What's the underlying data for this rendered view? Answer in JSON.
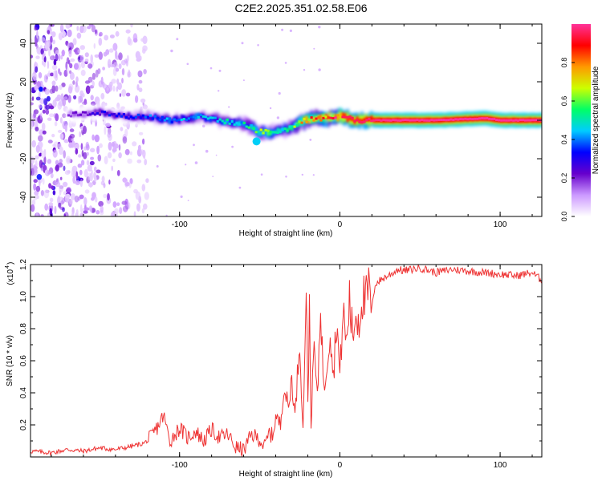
{
  "page": {
    "title": "C2E2.2025.351.02.58.E06"
  },
  "chart_data": [
    {
      "type": "heatmap",
      "title": "C2E2.2025.351.02.58.E06",
      "xlabel": "Height of straight line (km)",
      "ylabel": "Frequency (Hz)",
      "xlim": [
        -193,
        126
      ],
      "ylim": [
        -50,
        50
      ],
      "xticks": [
        {
          "value": -100,
          "label": "-100"
        },
        {
          "value": 0,
          "label": "0"
        },
        {
          "value": 100,
          "label": "100"
        }
      ],
      "yticks": [
        {
          "value": -40,
          "label": "-40"
        },
        {
          "value": -20,
          "label": "-20"
        },
        {
          "value": 0,
          "label": "0"
        },
        {
          "value": 20,
          "label": "20"
        },
        {
          "value": 40,
          "label": "40"
        }
      ],
      "ridge": {
        "x": [
          -170,
          -150,
          -135,
          -120,
          -105,
          -90,
          -80,
          -70,
          -62,
          -56,
          -52,
          -46,
          -40,
          -32,
          -25,
          -18,
          -10,
          0,
          10,
          30,
          60,
          90,
          100,
          126
        ],
        "frequency": [
          3,
          4,
          2,
          2,
          0,
          2,
          1,
          -1,
          -2,
          -3,
          -6,
          -6,
          -6,
          -4,
          -1,
          1,
          1,
          2,
          0,
          0,
          0,
          1,
          0,
          0
        ],
        "amplitude": [
          0.2,
          0.3,
          0.35,
          0.4,
          0.45,
          0.45,
          0.45,
          0.5,
          0.5,
          0.55,
          0.6,
          0.65,
          0.55,
          0.6,
          0.75,
          0.85,
          0.9,
          0.95,
          0.95,
          1.0,
          1.0,
          1.0,
          1.0,
          1.0
        ]
      },
      "noise_region": {
        "x": [
          -193,
          -120
        ],
        "frequency": [
          -50,
          50
        ],
        "amplitude": [
          0.05,
          0.3
        ]
      },
      "colorbar": {
        "label": "Normalized spectral amplitude",
        "range": [
          0,
          1
        ],
        "ticks": [
          {
            "value": 0.0,
            "label": "0.0"
          },
          {
            "value": 0.2,
            "label": "0.2"
          },
          {
            "value": 0.4,
            "label": "0.4"
          },
          {
            "value": 0.6,
            "label": "0.6"
          },
          {
            "value": 0.8,
            "label": "0.8"
          }
        ],
        "colors": [
          "#ffffff",
          "#cc99ff",
          "#6600cc",
          "#0000ff",
          "#00ccff",
          "#00ff66",
          "#ccff00",
          "#ff9900",
          "#ff0000",
          "#ff3399"
        ]
      }
    },
    {
      "type": "line",
      "xlabel": "Height of straight line (km)",
      "ylabel": "SNR (10 * v/v)",
      "multiplier_label": "(x10",
      "multiplier_exponent": "4",
      "xlim": [
        -193,
        126
      ],
      "ylim": [
        0,
        1.2
      ],
      "xticks": [
        {
          "value": -100,
          "label": "-100"
        },
        {
          "value": 0,
          "label": "0"
        },
        {
          "value": 100,
          "label": "100"
        }
      ],
      "yticks": [
        {
          "value": 0.2,
          "label": "0.2"
        },
        {
          "value": 0.4,
          "label": "0.4"
        },
        {
          "value": 0.6,
          "label": "0.6"
        },
        {
          "value": 0.8,
          "label": "0.8"
        },
        {
          "value": 1.0,
          "label": "1.0"
        },
        {
          "value": 1.2,
          "label": "1.2"
        }
      ],
      "color": "#ee3333",
      "series": [
        {
          "name": "SNR",
          "x": [
            -193,
            -180,
            -170,
            -160,
            -150,
            -140,
            -130,
            -122,
            -118,
            -113,
            -110,
            -106,
            -100,
            -95,
            -90,
            -85,
            -80,
            -75,
            -70,
            -65,
            -60,
            -55,
            -50,
            -47,
            -44,
            -42,
            -40,
            -37,
            -35,
            -32,
            -30,
            -28,
            -25,
            -23,
            -21,
            -20,
            -19,
            -18,
            -16,
            -14,
            -12,
            -10,
            -8,
            -6,
            -4,
            -2,
            0,
            2,
            4,
            6,
            8,
            10,
            12,
            14,
            16,
            18,
            20,
            22,
            25,
            28,
            32,
            36,
            40,
            50,
            60,
            70,
            80,
            90,
            100,
            110,
            120,
            126
          ],
          "y": [
            0.03,
            0.02,
            0.04,
            0.03,
            0.05,
            0.04,
            0.06,
            0.08,
            0.12,
            0.2,
            0.26,
            0.1,
            0.18,
            0.12,
            0.16,
            0.1,
            0.17,
            0.12,
            0.14,
            0.06,
            0.04,
            0.14,
            0.11,
            0.06,
            0.15,
            0.13,
            0.25,
            0.2,
            0.45,
            0.3,
            0.5,
            0.25,
            0.75,
            0.15,
            1.12,
            0.3,
            0.95,
            0.2,
            0.7,
            0.35,
            0.98,
            0.4,
            0.6,
            0.82,
            0.5,
            0.88,
            0.5,
            0.92,
            0.7,
            0.98,
            0.75,
            0.9,
            0.85,
            1.02,
            0.95,
            1.05,
            0.92,
            1.08,
            1.1,
            1.12,
            1.14,
            1.17,
            1.16,
            1.18,
            1.15,
            1.17,
            1.16,
            1.15,
            1.14,
            1.13,
            1.15,
            1.1
          ]
        }
      ]
    }
  ]
}
